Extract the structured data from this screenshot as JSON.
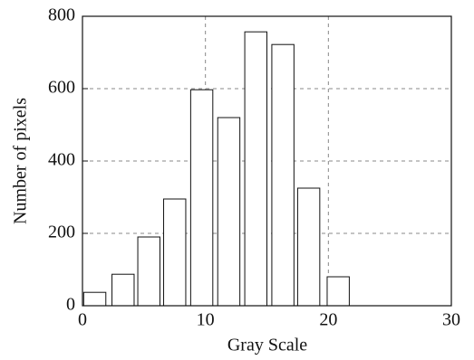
{
  "chart_data": {
    "type": "bar",
    "xlabel": "Gray Scale",
    "ylabel": "Number of pixels",
    "x": [
      1.0,
      3.3,
      5.4,
      7.5,
      9.7,
      11.9,
      14.1,
      16.3,
      18.4,
      20.8
    ],
    "values": [
      37,
      87,
      190,
      295,
      597,
      520,
      757,
      722,
      325,
      80
    ],
    "color": "#ffffff",
    "edgecolor": "#111111",
    "xlim": [
      0,
      30
    ],
    "xticks": [
      0,
      10,
      20,
      30
    ],
    "ylim": [
      0,
      800
    ],
    "yticks": [
      0,
      200,
      400,
      600,
      800
    ],
    "grid": true
  }
}
